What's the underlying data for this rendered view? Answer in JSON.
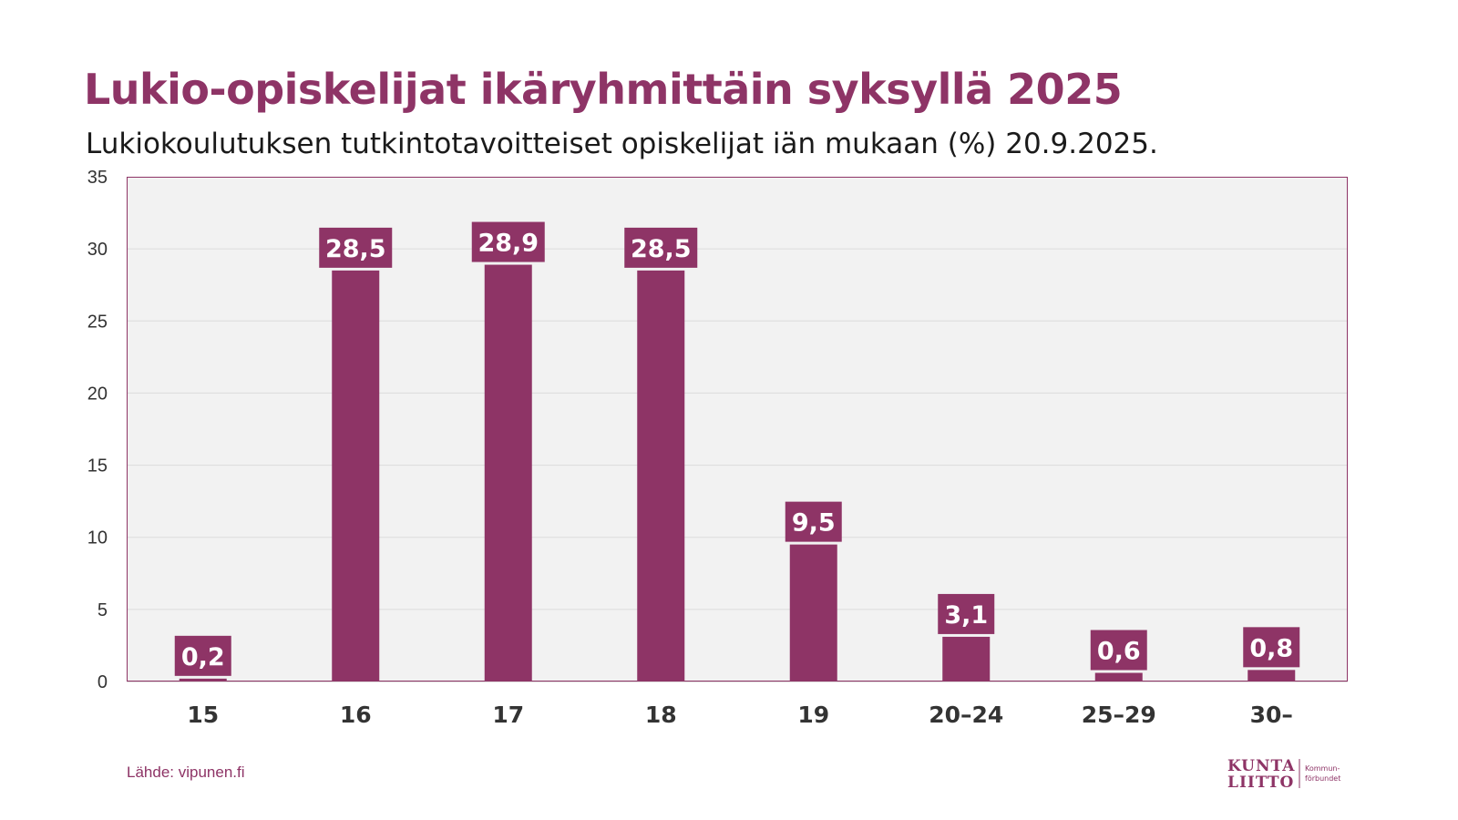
{
  "title": "Lukio-opiskelijat ikäryhmittäin syksyllä 2025",
  "subtitle": "Lukiokoulutuksen tutkintotavoitteiset opiskelijat iän mukaan (%) 20.9.2025.",
  "source": "Lähde: vipunen.fi",
  "logo": {
    "line1": "KUNTA",
    "line2": "LIITTO",
    "side1": "Kommun-",
    "side2": "förbundet"
  },
  "colors": {
    "bar": "#8e3466",
    "plot_background": "#f2f2f2",
    "title": "#8e3466"
  },
  "chart_data": {
    "type": "bar",
    "categories": [
      "15",
      "16",
      "17",
      "18",
      "19",
      "20–24",
      "25–29",
      "30–"
    ],
    "values": [
      0.2,
      28.5,
      28.9,
      28.5,
      9.5,
      3.1,
      0.6,
      0.8
    ],
    "value_labels": [
      "0,2",
      "28,5",
      "28,9",
      "28,5",
      "9,5",
      "3,1",
      "0,6",
      "0,8"
    ],
    "title": "Lukio-opiskelijat ikäryhmittäin syksyllä 2025",
    "xlabel": "",
    "ylabel": "",
    "ylim": [
      0,
      35
    ],
    "yticks": [
      0,
      5,
      10,
      15,
      20,
      25,
      30,
      35
    ],
    "grid": true,
    "legend": "none"
  }
}
